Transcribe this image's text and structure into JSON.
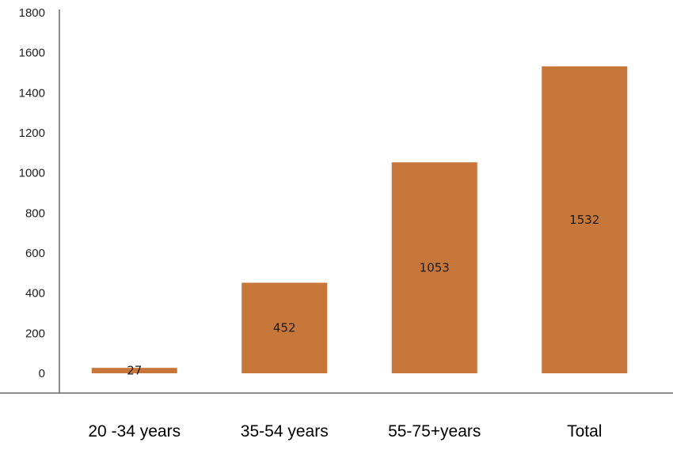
{
  "chart_data": {
    "type": "bar",
    "title": "",
    "xlabel": "",
    "ylabel": "",
    "categories": [
      "20 -34 years",
      "35-54 years",
      "55-75+years",
      "Total"
    ],
    "values": [
      27,
      452,
      1053,
      1532
    ],
    "data_labels": [
      "27",
      "452",
      "1053",
      "1532"
    ],
    "ylim": [
      0,
      1800
    ],
    "yticks": [
      0,
      200,
      400,
      600,
      800,
      1000,
      1200,
      1400,
      1600,
      1800
    ],
    "ytick_labels": [
      "0",
      "200",
      "400",
      "600",
      "800",
      "1000",
      "1200",
      "1400",
      "1600",
      "1800"
    ],
    "grid": false,
    "legend": "none",
    "bar_color": "#C8773A"
  }
}
